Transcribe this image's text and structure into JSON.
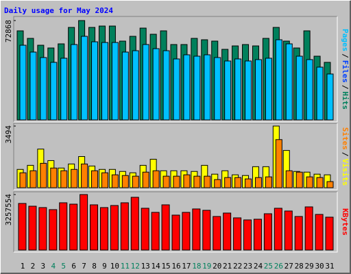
{
  "chart_data": [
    {
      "type": "bar",
      "title": "Daily usage for May 2024",
      "title_color": "#0000ff",
      "ylim": [
        0,
        72868
      ],
      "yticks": [
        72868
      ],
      "legend": [
        "Pages",
        "/",
        "Files",
        "/",
        "Hits"
      ],
      "legend_colors": [
        "#00c0ff",
        "#000000",
        "#0040ff",
        "#000000",
        "#00805c"
      ],
      "series": [
        {
          "name": "Hits",
          "color": "#00805c",
          "values": [
            65330,
            59800,
            54770,
            52760,
            55780,
            67840,
            72868,
            67840,
            68840,
            68840,
            57790,
            61310,
            67340,
            62820,
            65330,
            55280,
            55280,
            59800,
            58790,
            57790,
            51760,
            54270,
            55280,
            54270,
            59800,
            67840,
            57790,
            52760,
            65330,
            46730,
            42210
          ]
        },
        {
          "name": "Files",
          "color": "#00c0ff",
          "values": [
            54770,
            49750,
            45730,
            42210,
            45230,
            55280,
            61310,
            57290,
            56780,
            56780,
            49750,
            50750,
            55280,
            52260,
            50750,
            44720,
            47740,
            46730,
            47740,
            45730,
            43220,
            44720,
            43220,
            44220,
            45230,
            58790,
            55780,
            46730,
            44220,
            38690,
            33670
          ]
        }
      ]
    },
    {
      "type": "bar",
      "ylim": [
        0,
        3494
      ],
      "yticks": [
        3494
      ],
      "legend": [
        "Sites",
        "/",
        "Visits"
      ],
      "legend_colors": [
        "#ff8000",
        "#000000",
        "#ffff00"
      ],
      "series": [
        {
          "name": "Visits",
          "color": "#ffff00",
          "values": [
            1037,
            1267,
            2189,
            1536,
            1114,
            1344,
            1766,
            1229,
            1037,
            1037,
            922,
            845,
            1267,
            1613,
            960,
            960,
            960,
            922,
            1267,
            768,
            960,
            730,
            691,
            1190,
            1190,
            3494,
            2112,
            922,
            883,
            768,
            730
          ]
        },
        {
          "name": "Sites",
          "color": "#ff8000",
          "values": [
            845,
            960,
            1382,
            1114,
            960,
            1037,
            1344,
            960,
            845,
            730,
            691,
            653,
            883,
            960,
            653,
            653,
            730,
            653,
            653,
            461,
            576,
            576,
            499,
            576,
            614,
            2726,
            960,
            883,
            614,
            576,
            346
          ]
        }
      ]
    },
    {
      "type": "bar",
      "ylim": [
        0,
        3257554
      ],
      "yticks": [
        3257554
      ],
      "legend": [
        "KBytes"
      ],
      "legend_colors": [
        "#ff0000"
      ],
      "categories": [
        "1",
        "2",
        "3",
        "4",
        "5",
        "6",
        "7",
        "8",
        "9",
        "10",
        "11",
        "12",
        "13",
        "14",
        "15",
        "16",
        "17",
        "18",
        "19",
        "20",
        "21",
        "22",
        "23",
        "24",
        "25",
        "26",
        "27",
        "28",
        "29",
        "30",
        "31"
      ],
      "category_colors": [
        "#000000",
        "#000000",
        "#000000",
        "#00805c",
        "#00805c",
        "#000000",
        "#000000",
        "#000000",
        "#000000",
        "#000000",
        "#00805c",
        "#00805c",
        "#000000",
        "#000000",
        "#000000",
        "#000000",
        "#000000",
        "#00805c",
        "#00805c",
        "#000000",
        "#000000",
        "#000000",
        "#000000",
        "#000000",
        "#00805c",
        "#00805c",
        "#000000",
        "#000000",
        "#000000",
        "#000000",
        "#000000"
      ],
      "series": [
        {
          "name": "KBytes",
          "color": "#ff0000",
          "values": [
            2734760,
            2573890,
            2493450,
            2372800,
            2774970,
            2694540,
            3257554,
            2654320,
            2493450,
            2614110,
            2774970,
            3096710,
            2453240,
            2211940,
            2654320,
            2051070,
            2211940,
            2413020,
            2332590,
            1970630,
            2171720,
            1890200,
            1769550,
            1809770,
            2131500,
            2453240,
            2292370,
            1970630,
            2533670,
            2091280,
            1930420
          ]
        }
      ]
    }
  ]
}
